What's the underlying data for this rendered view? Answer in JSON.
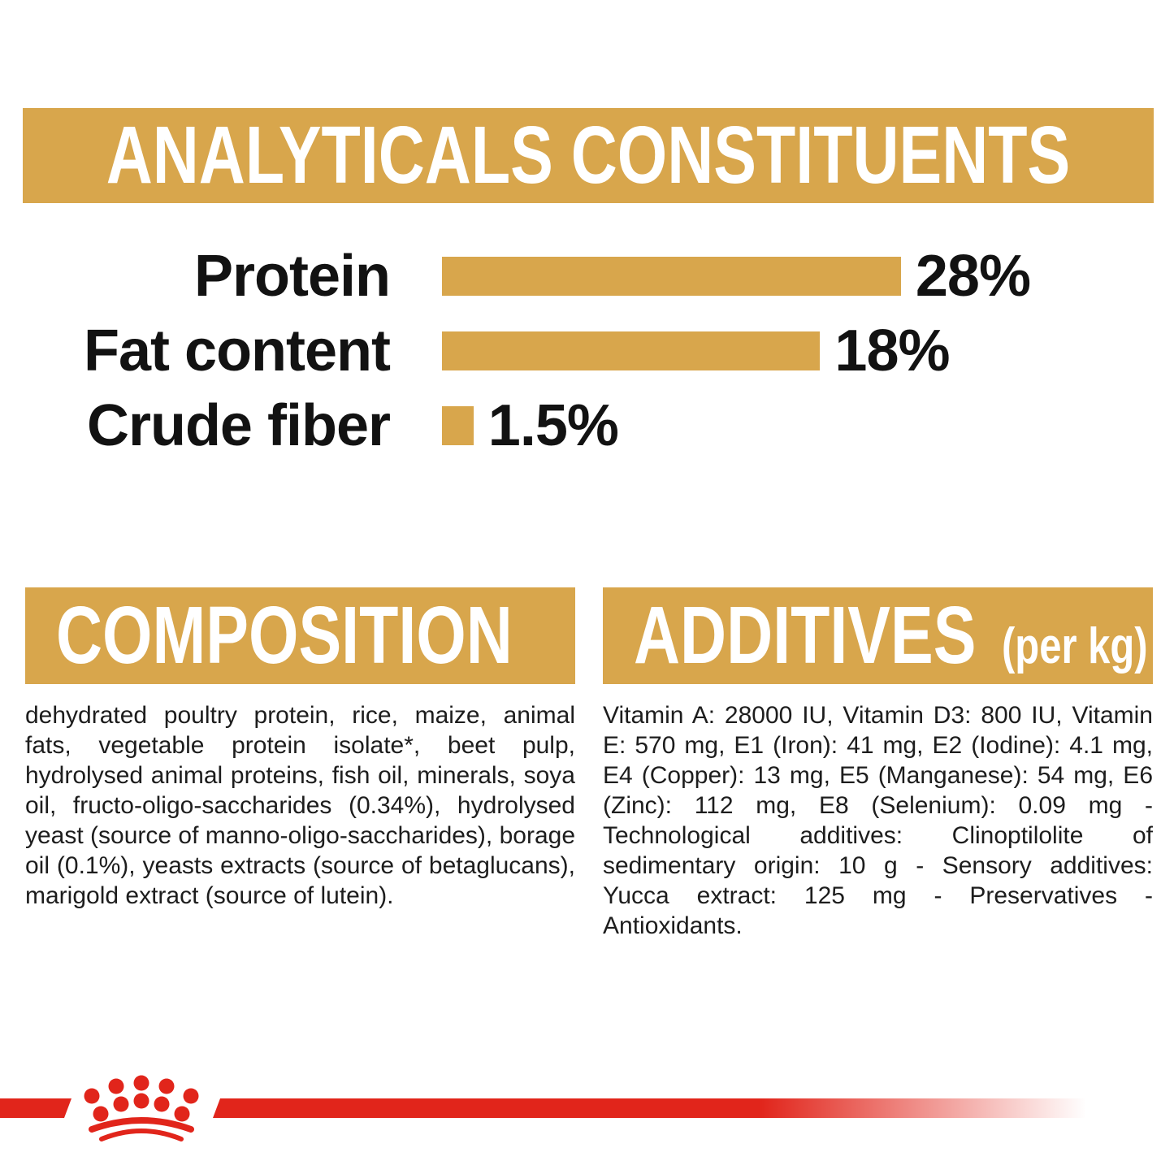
{
  "colors": {
    "gold": "#D8A64C",
    "red": "#E1251B",
    "text": "#1D1D1D",
    "header_text": "#FFFFFF"
  },
  "analyticals": {
    "title": "ANALYTICALS CONSTITUENTS"
  },
  "chart_data": {
    "type": "bar",
    "orientation": "horizontal",
    "title": "ANALYTICALS CONSTITUENTS",
    "categories": [
      "Protein",
      "Fat content",
      "Crude fiber"
    ],
    "values": [
      28,
      18,
      1.5
    ],
    "value_labels": [
      "28%",
      "18%",
      "1.5%"
    ],
    "unit": "%",
    "xmax": 28,
    "bar_color": "#D8A64C",
    "grid": false,
    "legend": false
  },
  "composition": {
    "title": "COMPOSITION",
    "body": "dehydrated poultry protein, rice, maize, animal fats, vegetable protein isolate*, beet pulp, hydrolysed animal proteins, fish oil, minerals, soya oil, fructo-oligo-saccharides (0.34%), hydrolysed yeast (source of manno-oligo-saccharides), borage oil (0.1%), yeasts extracts (source of betaglucans), marigold extract (source of lutein)."
  },
  "additives": {
    "title": "ADDITIVES",
    "unit_note": "(per kg)",
    "body": "Vitamin A: 28000 IU, Vitamin D3: 800 IU, Vitamin E: 570 mg, E1 (Iron): 41 mg, E2 (Iodine): 4.1 mg, E4 (Copper): 13 mg, E5 (Manganese): 54 mg, E6 (Zinc): 112 mg, E8 (Selenium): 0.09 mg - Technological additives: Clinoptilolite of sedimentary origin: 10 g - Sensory additives: Yucca extract: 125 mg - Preservatives - Antioxidants.",
    "brand_logo": "royal-canin-crown"
  }
}
